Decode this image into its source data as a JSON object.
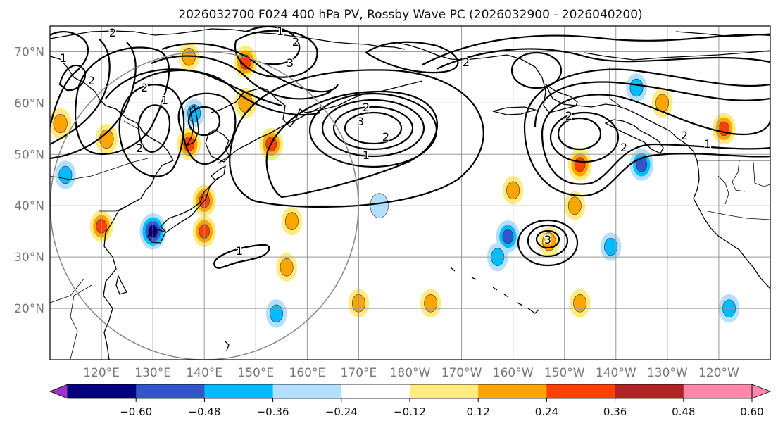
{
  "title": "2026032700 F024 400 hPa PV, Rossby Wave PC (2026032900 - 2026040200)",
  "map": {
    "projection": "PlateCarree",
    "lon_range": [
      110,
      250
    ],
    "lat_range": [
      10,
      75
    ],
    "lat_ticks": [
      {
        "lat": 70,
        "label": "70°N"
      },
      {
        "lat": 60,
        "label": "60°N"
      },
      {
        "lat": 50,
        "label": "50°N"
      },
      {
        "lat": 40,
        "label": "40°N"
      },
      {
        "lat": 30,
        "label": "30°N"
      },
      {
        "lat": 20,
        "label": "20°N"
      }
    ],
    "lon_ticks": [
      {
        "lon": 120,
        "label": "120°E"
      },
      {
        "lon": 130,
        "label": "130°E"
      },
      {
        "lon": 140,
        "label": "140°E"
      },
      {
        "lon": 150,
        "label": "150°E"
      },
      {
        "lon": 160,
        "label": "160°E"
      },
      {
        "lon": 170,
        "label": "170°E"
      },
      {
        "lon": 180,
        "label": "180°W"
      },
      {
        "lon": 190,
        "label": "170°W"
      },
      {
        "lon": 200,
        "label": "160°W"
      },
      {
        "lon": 210,
        "label": "150°W"
      },
      {
        "lon": 220,
        "label": "140°W"
      },
      {
        "lon": 230,
        "label": "130°W"
      },
      {
        "lon": 240,
        "label": "120°W"
      }
    ],
    "circle": {
      "center_lon": 140,
      "center_lat": 40,
      "radius_deg_lat": 30
    },
    "contour_labels": [
      "2",
      "1",
      "2",
      "2",
      "1",
      "2",
      "2",
      "1",
      "3",
      "3",
      "2",
      "2",
      "1",
      "2",
      "2",
      "2",
      "1",
      "1",
      "2",
      "3"
    ],
    "shading_features": [
      {
        "lon": 130,
        "lat": 35,
        "value": -0.5
      },
      {
        "lon": 153,
        "lat": 52,
        "value": 0.4
      },
      {
        "lon": 148,
        "lat": 68,
        "value": 0.4
      },
      {
        "lon": 213,
        "lat": 48,
        "value": 0.4
      },
      {
        "lon": 225,
        "lat": 48,
        "value": -0.4
      },
      {
        "lon": 241,
        "lat": 55,
        "value": 0.38
      },
      {
        "lon": 120,
        "lat": 36,
        "value": 0.38
      },
      {
        "lon": 140,
        "lat": 41,
        "value": 0.38
      },
      {
        "lon": 140,
        "lat": 35,
        "value": 0.38
      },
      {
        "lon": 137,
        "lat": 52,
        "value": 0.4
      },
      {
        "lon": 199,
        "lat": 34,
        "value": -0.4
      },
      {
        "lon": 207,
        "lat": 33,
        "value": 0.32
      },
      {
        "lon": 200,
        "lat": 43,
        "value": 0.3
      },
      {
        "lon": 224,
        "lat": 63,
        "value": -0.3
      },
      {
        "lon": 112,
        "lat": 56,
        "value": 0.35
      },
      {
        "lon": 121,
        "lat": 53,
        "value": 0.35
      },
      {
        "lon": 138,
        "lat": 58,
        "value": -0.3
      },
      {
        "lon": 157,
        "lat": 37,
        "value": 0.3
      },
      {
        "lon": 156,
        "lat": 28,
        "value": 0.3
      },
      {
        "lon": 174,
        "lat": 40,
        "value": -0.2
      },
      {
        "lon": 184,
        "lat": 21,
        "value": 0.3
      },
      {
        "lon": 170,
        "lat": 21,
        "value": 0.3
      },
      {
        "lon": 197,
        "lat": 30,
        "value": -0.3
      },
      {
        "lon": 219,
        "lat": 32,
        "value": -0.3
      },
      {
        "lon": 213,
        "lat": 21,
        "value": 0.3
      },
      {
        "lon": 212,
        "lat": 40,
        "value": 0.3
      },
      {
        "lon": 154,
        "lat": 19,
        "value": -0.3
      },
      {
        "lon": 229,
        "lat": 60,
        "value": 0.3
      },
      {
        "lon": 242,
        "lat": 20,
        "value": -0.3
      },
      {
        "lon": 148,
        "lat": 60,
        "value": 0.35
      },
      {
        "lon": 137,
        "lat": 69,
        "value": 0.3
      },
      {
        "lon": 113,
        "lat": 46,
        "value": -0.3
      }
    ]
  },
  "colorbar": {
    "ticks": [
      "−0.60",
      "−0.48",
      "−0.36",
      "−0.24",
      "−0.12",
      "0.12",
      "0.24",
      "0.36",
      "0.48",
      "0.60"
    ],
    "colors": [
      "#9933cc",
      "#000080",
      "#3355cc",
      "#00bbff",
      "#b3e0ff",
      "#ffffff",
      "#ffeb80",
      "#ffa500",
      "#ff4000",
      "#b22222",
      "#ff88aa",
      "#ff88aa"
    ]
  }
}
